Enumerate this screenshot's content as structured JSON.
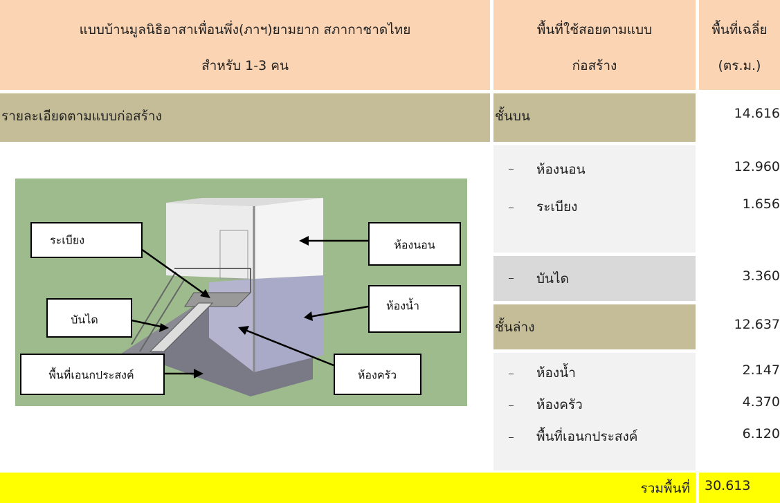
{
  "header": {
    "plan": [
      "แบบบ้านมูลนิธิอาสาเพื่อนพึ่ง(ภาฯ)ยามยาก สภากาชาดไทย",
      "สำหรับ 1-3 คน"
    ],
    "area_label": [
      "พื้นที่ใช้สอยตามแบบ",
      "ก่อสร้าง"
    ],
    "avg_label": [
      "พื้นที่เฉลี่ย",
      "(ตร.ม.)"
    ]
  },
  "details_label": "รายละเอียดตามแบบก่อสร้าง",
  "upper": {
    "name": "ชั้นบน",
    "area": "14.616",
    "rooms": [
      {
        "name": "ห้องนอน",
        "area": "12.960"
      },
      {
        "name": "ระเบียง",
        "area": "1.656"
      }
    ],
    "stairs": {
      "name": "บันได",
      "area": "3.360"
    }
  },
  "lower": {
    "name": "ชั้นล่าง",
    "area": "12.637",
    "rooms": [
      {
        "name": "ห้องน้ำ",
        "area": "2.147"
      },
      {
        "name": "ห้องครัว",
        "area": "4.370"
      },
      {
        "name": "พื้นที่เอนกประสงค์",
        "area": "6.120"
      }
    ]
  },
  "total": {
    "label": "รวมพื้นที่",
    "area": "30.613"
  },
  "diagram_labels": {
    "balcony": "ระเบียง",
    "bedroom": "ห้องนอน",
    "stairs": "บันได",
    "bathroom": "ห้องน้ำ",
    "multipurpose": "พื้นที่เอนกประสงค์",
    "kitchen": "ห้องครัว"
  }
}
